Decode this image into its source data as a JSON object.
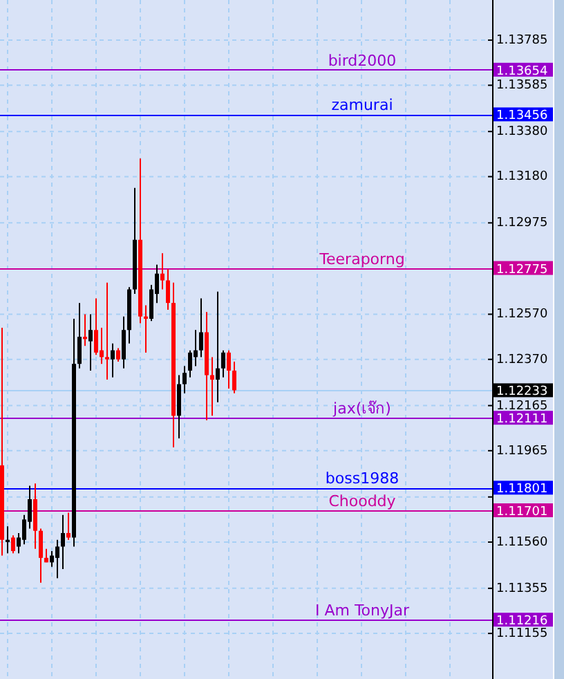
{
  "chart_data": {
    "type": "candlestick",
    "categories": [
      null,
      null,
      null,
      null,
      null,
      null,
      null,
      null,
      null,
      null,
      null,
      null,
      null,
      null,
      null,
      null,
      null,
      null,
      null,
      null,
      null,
      null,
      null,
      null,
      null,
      null,
      null,
      null,
      null,
      null,
      null,
      null,
      null,
      null,
      null,
      null,
      null,
      null,
      null,
      null,
      null,
      null,
      null,
      null,
      null,
      null,
      null,
      null,
      null,
      null,
      null,
      null,
      null,
      null,
      null,
      null,
      null,
      null,
      null,
      null,
      null,
      null,
      null,
      null,
      null,
      null,
      null,
      null,
      null,
      null,
      null,
      null,
      null,
      null,
      null,
      null,
      null,
      null,
      null,
      null,
      null,
      null,
      null,
      null,
      null,
      null,
      null,
      null,
      null
    ],
    "ohlc": [
      [
        1.119,
        1.1251,
        1.115,
        1.1157
      ],
      [
        1.1157,
        1.1163,
        1.1151,
        1.1156
      ],
      [
        1.1158,
        1.1159,
        1.1151,
        1.1152
      ],
      [
        1.1154,
        1.116,
        1.1151,
        1.1158
      ],
      [
        1.1157,
        1.1168,
        1.1155,
        1.1166
      ],
      [
        1.1165,
        1.1181,
        1.1162,
        1.1175
      ],
      [
        1.1175,
        1.1182,
        1.1153,
        1.1161
      ],
      [
        1.1161,
        1.1162,
        1.1138,
        1.1149
      ],
      [
        1.1149,
        1.1153,
        1.1147,
        1.1147
      ],
      [
        1.1147,
        1.1152,
        1.1145,
        1.115
      ],
      [
        1.1149,
        1.1157,
        1.114,
        1.1154
      ],
      [
        1.1154,
        1.1168,
        1.1144,
        1.116
      ],
      [
        1.116,
        1.1169,
        1.1157,
        1.1158
      ],
      [
        1.1158,
        1.1255,
        1.1154,
        1.1235
      ],
      [
        1.1235,
        1.1262,
        1.1233,
        1.1247
      ],
      [
        1.1247,
        1.1257,
        1.1243,
        1.1246
      ],
      [
        1.1245,
        1.1257,
        1.1232,
        1.125
      ],
      [
        1.125,
        1.1264,
        1.1239,
        1.124
      ],
      [
        1.1241,
        1.1251,
        1.1235,
        1.1238
      ],
      [
        1.1238,
        1.1271,
        1.1228,
        1.1237
      ],
      [
        1.1237,
        1.1244,
        1.1229,
        1.1241
      ],
      [
        1.1241,
        1.1242,
        1.1236,
        1.1237
      ],
      [
        1.1237,
        1.1256,
        1.1233,
        1.125
      ],
      [
        1.125,
        1.1269,
        1.1244,
        1.1268
      ],
      [
        1.1268,
        1.1313,
        1.1266,
        1.129
      ],
      [
        1.129,
        1.1326,
        1.1253,
        1.1256
      ],
      [
        1.1256,
        1.1261,
        1.124,
        1.1255
      ],
      [
        1.1255,
        1.127,
        1.1254,
        1.1268
      ],
      [
        1.1266,
        1.1279,
        1.1262,
        1.1275
      ],
      [
        1.1275,
        1.1284,
        1.1268,
        1.1272
      ],
      [
        1.1272,
        1.1277,
        1.1259,
        1.1262
      ],
      [
        1.1262,
        1.1271,
        1.1198,
        1.1212
      ],
      [
        1.1212,
        1.123,
        1.1202,
        1.1226
      ],
      [
        1.1226,
        1.1234,
        1.1222,
        1.1231
      ],
      [
        1.1232,
        1.1241,
        1.1229,
        1.124
      ],
      [
        1.1238,
        1.125,
        1.1234,
        1.1241
      ],
      [
        1.1241,
        1.1264,
        1.1238,
        1.1249
      ],
      [
        1.1249,
        1.1258,
        1.121,
        1.123
      ],
      [
        1.123,
        1.1238,
        1.1212,
        1.1228
      ],
      [
        1.1228,
        1.1267,
        1.1218,
        1.1233
      ],
      [
        1.1233,
        1.1241,
        1.1229,
        1.124
      ],
      [
        1.124,
        1.1241,
        1.1224,
        1.1232
      ],
      [
        1.1232,
        1.1236,
        1.1222,
        1.12233
      ],
      null,
      null,
      null,
      null,
      null,
      null,
      null,
      null,
      null,
      null,
      null,
      null,
      null,
      null,
      null,
      null,
      null,
      null,
      null,
      null,
      null,
      null,
      null,
      null,
      null,
      null,
      null,
      null,
      null,
      null,
      null,
      null,
      null,
      null,
      null,
      null,
      null,
      null,
      null,
      null,
      null,
      null,
      null,
      null,
      null,
      null
    ],
    "colors": [
      "#ff0000",
      "#000000",
      "#ff0000",
      "#000000",
      "#000000",
      "#000000",
      "#ff0000",
      "#ff0000",
      "#ff0000",
      "#000000",
      "#000000",
      "#000000",
      "#ff0000",
      "#000000",
      "#000000",
      "#ff0000",
      "#000000",
      "#ff0000",
      "#ff0000",
      "#ff0000",
      "#000000",
      "#ff0000",
      "#000000",
      "#000000",
      "#000000",
      "#ff0000",
      "#ff0000",
      "#000000",
      "#000000",
      "#ff0000",
      "#ff0000",
      "#ff0000",
      "#000000",
      "#000000",
      "#000000",
      "#000000",
      "#000000",
      "#ff0000",
      "#ff0000",
      "#000000",
      "#000000",
      "#ff0000",
      "#ff0000",
      null,
      null,
      null,
      null,
      null,
      null,
      null,
      null,
      null,
      null,
      null,
      null,
      null,
      null,
      null,
      null,
      null,
      null,
      null,
      null,
      null,
      null,
      null,
      null,
      null,
      null,
      null,
      null,
      null,
      null,
      null,
      null,
      null,
      null,
      null,
      null,
      null,
      null,
      null,
      null,
      null,
      null,
      null,
      null,
      null,
      null
    ],
    "ylim": [
      1.10953,
      1.13963
    ],
    "yticks": [
      {
        "value": 1.13785,
        "label": "1.13785"
      },
      {
        "value": 1.13585,
        "label": "1.13585"
      },
      {
        "value": 1.1338,
        "label": "1.13380"
      },
      {
        "value": 1.1318,
        "label": "1.13180"
      },
      {
        "value": 1.12975,
        "label": "1.12975"
      },
      {
        "value": 1.1257,
        "label": "1.12570"
      },
      {
        "value": 1.1237,
        "label": "1.12370"
      },
      {
        "value": 1.12165,
        "label": "1.12165"
      },
      {
        "value": 1.11965,
        "label": "1.11965"
      },
      {
        "value": 1.1176,
        "label": null
      },
      {
        "value": 1.1156,
        "label": "1.11560"
      },
      {
        "value": 1.11355,
        "label": "1.11355"
      },
      {
        "value": 1.11155,
        "label": "1.11155"
      }
    ],
    "annotations": [
      "1.13654",
      "1.13456",
      "1.12775",
      "1.12233",
      "1.12111",
      "1.11801",
      "1.11701",
      "1.11216"
    ],
    "grid": true,
    "tick_labels": "y",
    "ref_lines": [
      {
        "axis": "y",
        "value": 1.13654,
        "label": "bird2000",
        "color": "#9900cc"
      },
      {
        "axis": "y",
        "value": 1.13456,
        "label": "zamurai",
        "color": "#0000ff"
      },
      {
        "axis": "y",
        "value": 1.12775,
        "label": "Teeraporng",
        "color": "#cc0099"
      },
      {
        "axis": "y",
        "value": 1.12233,
        "label": null,
        "color": "#a8d0f5"
      },
      {
        "axis": "y",
        "value": 1.12111,
        "label": "jax(เจ๊ก)",
        "color": "#9900cc"
      },
      {
        "axis": "y",
        "value": 1.11801,
        "label": "boss1988",
        "color": "#0000ff"
      },
      {
        "axis": "y",
        "value": 1.11701,
        "label": "Chooddy",
        "color": "#cc0099"
      },
      {
        "axis": "y",
        "value": 1.11216,
        "label": "I Am TonyJar",
        "color": "#9900cc"
      }
    ]
  }
}
